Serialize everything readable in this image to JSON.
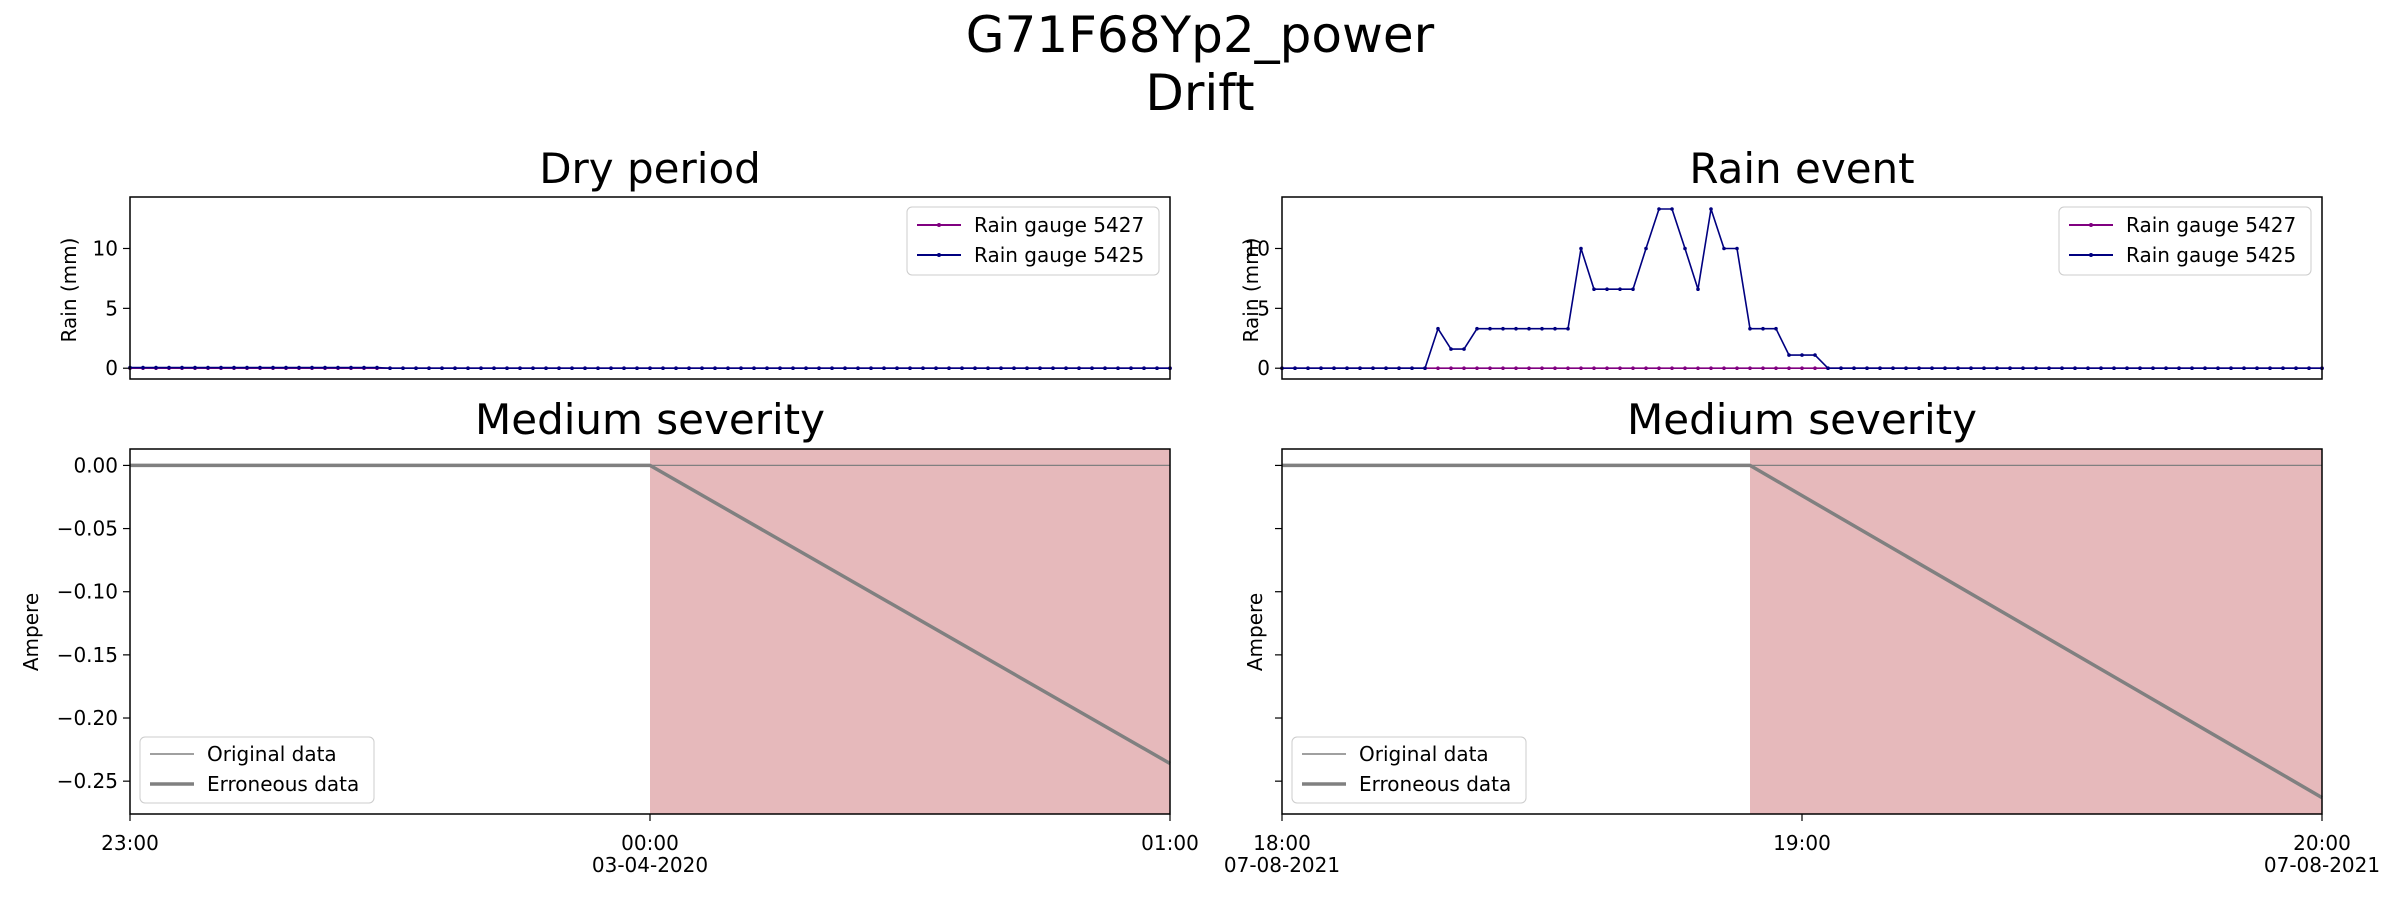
{
  "figure": {
    "title_line1": "G71F68Yp2_power",
    "title_line2": "Drift"
  },
  "colors": {
    "gauge_5427": "#800080",
    "gauge_5425": "#000080",
    "original": "#808080",
    "erroneous": "#808080",
    "error_region": "#e6b9bb"
  },
  "chart_data": [
    {
      "id": "dry_rain",
      "type": "line",
      "title": "Dry period",
      "xlabel": "",
      "ylabel": "Rain (mm)",
      "xlim": [
        "23:00",
        "01:00"
      ],
      "ylim": [
        -0.9,
        14.3
      ],
      "yticks": [
        0,
        5,
        10
      ],
      "grid": false,
      "legend_position": "top-right",
      "legend": [
        "Rain gauge 5427",
        "Rain gauge 5425"
      ],
      "series": [
        {
          "name": "Rain gauge 5427",
          "color": "#800080",
          "x_start_minutes": 0,
          "step_minutes": 1.5,
          "values": [
            0,
            0,
            0,
            0,
            0,
            0,
            0,
            0,
            0,
            0,
            0,
            0,
            0,
            0,
            0,
            0,
            0,
            0,
            0,
            0,
            0,
            0,
            0,
            0,
            0,
            0,
            0,
            0,
            0,
            0,
            0,
            0,
            0,
            0,
            0,
            0,
            0,
            0,
            0,
            0,
            0,
            0,
            0,
            0,
            0,
            0,
            0,
            0,
            0,
            0,
            0,
            0,
            0,
            0,
            0,
            0,
            0,
            0,
            0,
            0,
            0,
            0,
            0,
            0,
            0,
            0,
            0,
            0,
            0,
            0,
            0,
            0,
            0,
            0,
            0,
            0,
            0,
            0,
            0,
            0,
            0
          ]
        },
        {
          "name": "Rain gauge 5425",
          "color": "#000080",
          "x_start_minutes": 0,
          "step_minutes": 1.5,
          "values": [
            0.05,
            0.05,
            0.05,
            0.05,
            0.05,
            0.05,
            0.05,
            0.05,
            0.05,
            0.05,
            0.05,
            0.05,
            0.05,
            0.05,
            0.05,
            0.05,
            0.05,
            0.05,
            0.05,
            0.05,
            0,
            0,
            0,
            0,
            0,
            0,
            0,
            0,
            0,
            0,
            0,
            0,
            0,
            0,
            0,
            0,
            0,
            0,
            0,
            0,
            0,
            0,
            0,
            0,
            0,
            0,
            0,
            0,
            0,
            0,
            0,
            0,
            0,
            0,
            0,
            0,
            0,
            0,
            0,
            0,
            0,
            0,
            0,
            0,
            0,
            0,
            0,
            0,
            0,
            0,
            0,
            0,
            0,
            0,
            0,
            0,
            0,
            0,
            0,
            0,
            0
          ]
        }
      ]
    },
    {
      "id": "rain_rain",
      "type": "line",
      "title": "Rain event",
      "xlabel": "",
      "ylabel": "Rain (mm)",
      "xlim": [
        "18:00",
        "20:00"
      ],
      "ylim": [
        -0.9,
        14.3
      ],
      "yticks": [
        0,
        5,
        10
      ],
      "grid": false,
      "legend_position": "top-right",
      "legend": [
        "Rain gauge 5427",
        "Rain gauge 5425"
      ],
      "series": [
        {
          "name": "Rain gauge 5427",
          "color": "#800080",
          "x_start_minutes": 0,
          "step_minutes": 1.5,
          "values": [
            0,
            0,
            0,
            0,
            0,
            0,
            0,
            0,
            0,
            0,
            0,
            0,
            0,
            0,
            0,
            0,
            0,
            0,
            0,
            0,
            0,
            0,
            0,
            0,
            0,
            0,
            0,
            0,
            0,
            0,
            0,
            0,
            0,
            0,
            0,
            0,
            0,
            0,
            0,
            0,
            0,
            0,
            0,
            0,
            0,
            0,
            0,
            0,
            0,
            0,
            0,
            0,
            0,
            0,
            0,
            0,
            0,
            0,
            0,
            0,
            0,
            0,
            0,
            0,
            0,
            0,
            0,
            0,
            0,
            0,
            0,
            0,
            0,
            0,
            0,
            0,
            0,
            0,
            0,
            0,
            0
          ]
        },
        {
          "name": "Rain gauge 5425",
          "color": "#000080",
          "x_start_minutes": 0,
          "step_minutes": 1.5,
          "values": [
            0,
            0,
            0,
            0,
            0,
            0,
            0,
            0,
            0,
            0,
            0,
            0,
            3.3,
            1.6,
            1.6,
            3.3,
            3.3,
            3.3,
            3.3,
            3.3,
            3.3,
            3.3,
            3.3,
            10,
            6.6,
            6.6,
            6.6,
            6.6,
            10,
            13.3,
            13.3,
            10,
            6.6,
            13.3,
            10,
            10,
            3.3,
            3.3,
            3.3,
            1.1,
            1.1,
            1.1,
            0,
            0,
            0,
            0,
            0,
            0,
            0,
            0,
            0,
            0,
            0,
            0,
            0,
            0,
            0,
            0,
            0,
            0,
            0,
            0,
            0,
            0,
            0,
            0,
            0,
            0,
            0,
            0,
            0,
            0,
            0,
            0,
            0,
            0,
            0,
            0,
            0,
            0,
            0
          ]
        }
      ]
    },
    {
      "id": "dry_severity",
      "type": "line",
      "title": "Medium severity",
      "xlabel": "",
      "ylabel": "Ampere",
      "xlim": [
        "23:00",
        "01:00"
      ],
      "ylim": [
        -0.276,
        0.013
      ],
      "yticks": [
        0.0,
        -0.05,
        -0.1,
        -0.15,
        -0.2,
        -0.25
      ],
      "ytick_labels": [
        "0.00",
        "−0.05",
        "−0.10",
        "−0.15",
        "−0.20",
        "−0.25"
      ],
      "xticks": [
        {
          "label": "23:00",
          "sub": ""
        },
        {
          "label": "00:00",
          "sub": "03-04-2020"
        },
        {
          "label": "01:00",
          "sub": ""
        }
      ],
      "grid": false,
      "legend_position": "bottom-left",
      "legend": [
        "Original data",
        "Erroneous data"
      ],
      "error_region_minutes": [
        60,
        120
      ],
      "series": [
        {
          "name": "Original data",
          "color": "#808080",
          "x_minutes": [
            0,
            120
          ],
          "values": [
            0.0,
            0.0
          ]
        },
        {
          "name": "Erroneous data",
          "color": "#808080",
          "x_minutes": [
            0,
            60,
            120
          ],
          "values": [
            0.0,
            0.0,
            -0.236
          ]
        }
      ]
    },
    {
      "id": "rain_severity",
      "type": "line",
      "title": "Medium severity",
      "xlabel": "",
      "ylabel": "Ampere",
      "xlim": [
        "18:00",
        "20:00"
      ],
      "ylim": [
        -0.276,
        0.013
      ],
      "yticks": [
        0.0,
        -0.05,
        -0.1,
        -0.15,
        -0.2,
        -0.25
      ],
      "ytick_labels": [
        "",
        "",
        "",
        "",
        "",
        ""
      ],
      "xticks": [
        {
          "label": "18:00",
          "sub": "07-08-2021"
        },
        {
          "label": "19:00",
          "sub": ""
        },
        {
          "label": "20:00",
          "sub": "07-08-2021"
        }
      ],
      "grid": false,
      "legend_position": "bottom-left",
      "legend": [
        "Original data",
        "Erroneous data"
      ],
      "error_region_minutes": [
        54,
        120
      ],
      "series": [
        {
          "name": "Original data",
          "color": "#808080",
          "x_minutes": [
            0,
            120
          ],
          "values": [
            0.0,
            0.0
          ]
        },
        {
          "name": "Erroneous data",
          "color": "#808080",
          "x_minutes": [
            0,
            54,
            120
          ],
          "values": [
            0.0,
            0.0,
            -0.263
          ]
        }
      ]
    }
  ]
}
